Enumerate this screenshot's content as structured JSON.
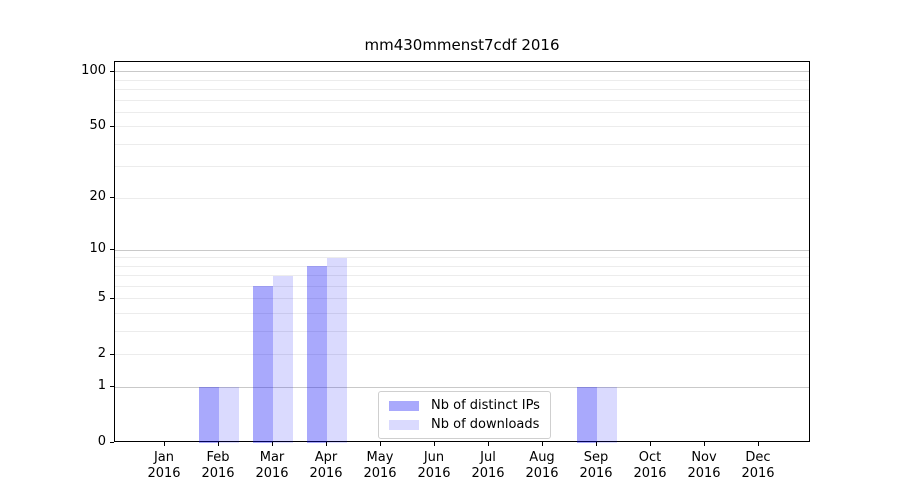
{
  "chart_data": {
    "type": "bar",
    "title": "mm430mmenst7cdf 2016",
    "categories": [
      "Jan",
      "Feb",
      "Mar",
      "Apr",
      "May",
      "Jun",
      "Jul",
      "Aug",
      "Sep",
      "Oct",
      "Nov",
      "Dec"
    ],
    "year_label": "2016",
    "series": [
      {
        "name": "Nb of distinct IPs",
        "color": "#0a0af559",
        "values": [
          0,
          1,
          6,
          8,
          0,
          0,
          0,
          0,
          1,
          0,
          0,
          0
        ]
      },
      {
        "name": "Nb of downloads",
        "color": "#0a0af526",
        "values": [
          0,
          1,
          7,
          9,
          0,
          0,
          0,
          0,
          1,
          0,
          0,
          0
        ]
      }
    ],
    "yticks": [
      0,
      1,
      2,
      5,
      10,
      20,
      50,
      100
    ],
    "ylim": [
      0,
      113
    ],
    "yscale": "log1p",
    "grid": {
      "on": true,
      "major": [
        1,
        10,
        100
      ],
      "minor": [
        2,
        3,
        4,
        5,
        6,
        7,
        8,
        9,
        20,
        30,
        40,
        50,
        60,
        70,
        80,
        90
      ]
    },
    "legend_position": "lower-center",
    "axis_color": "#000000",
    "grid_major_color": "#c9c9c9",
    "grid_minor_color": "#ececec"
  }
}
